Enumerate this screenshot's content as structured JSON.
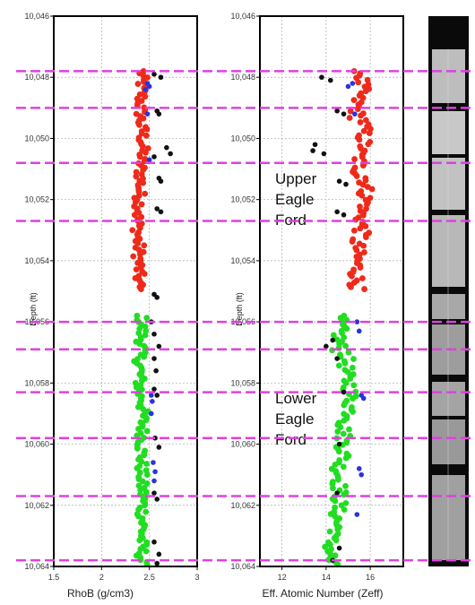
{
  "chart_data": [
    {
      "type": "scatter",
      "xlabel": "RhoB (g/cm3)",
      "ylabel": "Depth (ft)",
      "xlim": [
        1.5,
        3
      ],
      "ylim": [
        10064,
        10046
      ],
      "x_ticks": [
        "1.5",
        "2",
        "2.5",
        "3"
      ],
      "y_ticks": [
        "10,046",
        "10,048",
        "10,050",
        "10,052",
        "10,054",
        "10,056",
        "10,058",
        "10,060",
        "10,062",
        "10,064"
      ],
      "grid": true,
      "series": [
        {
          "color": "#ee2a1a",
          "ranges": [
            [
              10047.8,
              10048.7,
              2.42
            ],
            [
              10048.7,
              10049.7,
              2.41
            ],
            [
              10049.7,
              10050.6,
              2.43
            ],
            [
              10050.6,
              10051.6,
              2.41
            ],
            [
              10051.6,
              10052.5,
              2.4
            ],
            [
              10052.5,
              10053.5,
              2.38
            ],
            [
              10053.5,
              10055.0,
              2.39
            ]
          ]
        },
        {
          "color": "#22dd22",
          "ranges": [
            [
              10055.8,
              10057.0,
              2.42
            ],
            [
              10057.0,
              10058.5,
              2.4
            ],
            [
              10058.5,
              10060.0,
              2.43
            ],
            [
              10060.0,
              10061.5,
              2.42
            ],
            [
              10061.5,
              10063.0,
              2.43
            ],
            [
              10063.0,
              10064.0,
              2.42
            ]
          ]
        },
        {
          "color": "#111111",
          "points": [
            [
              2.55,
              10047.9
            ],
            [
              2.62,
              10048.0
            ],
            [
              2.58,
              10049.1
            ],
            [
              2.6,
              10049.2
            ],
            [
              2.68,
              10050.3
            ],
            [
              2.72,
              10050.5
            ],
            [
              2.55,
              10050.6
            ],
            [
              2.6,
              10051.3
            ],
            [
              2.62,
              10051.4
            ],
            [
              2.58,
              10052.3
            ],
            [
              2.62,
              10052.4
            ],
            [
              2.55,
              10055.1
            ],
            [
              2.58,
              10055.2
            ],
            [
              2.52,
              10056.0
            ],
            [
              2.55,
              10056.4
            ],
            [
              2.6,
              10056.8
            ],
            [
              2.55,
              10057.2
            ],
            [
              2.57,
              10057.6
            ],
            [
              2.55,
              10058.2
            ],
            [
              2.58,
              10058.4
            ],
            [
              2.56,
              10059.8
            ],
            [
              2.6,
              10060.1
            ],
            [
              2.55,
              10061.6
            ],
            [
              2.58,
              10061.8
            ],
            [
              2.55,
              10063.2
            ],
            [
              2.6,
              10063.6
            ],
            [
              2.58,
              10063.9
            ]
          ]
        },
        {
          "color": "#2a33dd",
          "points": [
            [
              2.48,
              10048.2
            ],
            [
              2.5,
              10048.3
            ],
            [
              2.46,
              10048.4
            ],
            [
              2.48,
              10049.2
            ],
            [
              2.5,
              10050.7
            ],
            [
              2.52,
              10058.4
            ],
            [
              2.53,
              10058.6
            ],
            [
              2.52,
              10059.0
            ],
            [
              2.54,
              10060.6
            ],
            [
              2.56,
              10060.9
            ],
            [
              2.55,
              10061.2
            ]
          ]
        }
      ]
    },
    {
      "type": "scatter",
      "xlabel": "Eff. Atomic Number (Zeff)",
      "ylabel": "Depth (ft)",
      "xlim": [
        11,
        17.5
      ],
      "ylim": [
        10064,
        10046
      ],
      "x_ticks": [
        "12",
        "14",
        "16"
      ],
      "y_ticks": [
        "10,046",
        "10,048",
        "10,050",
        "10,052",
        "10,054",
        "10,056",
        "10,058",
        "10,060",
        "10,062",
        "10,064"
      ],
      "grid": true,
      "series": [
        {
          "color": "#ee2a1a",
          "ranges": [
            [
              10047.8,
              10048.6,
              15.6
            ],
            [
              10048.6,
              10049.4,
              15.4
            ],
            [
              10049.4,
              10050.4,
              15.7
            ],
            [
              10050.4,
              10051.3,
              15.5
            ],
            [
              10051.3,
              10052.3,
              15.8
            ],
            [
              10052.3,
              10053.3,
              15.6
            ],
            [
              10053.3,
              10055.0,
              15.4
            ]
          ]
        },
        {
          "color": "#22dd22",
          "ranges": [
            [
              10055.8,
              10057.0,
              14.6
            ],
            [
              10057.0,
              10058.0,
              14.9
            ],
            [
              10058.0,
              10059.3,
              15.1
            ],
            [
              10059.3,
              10060.6,
              14.8
            ],
            [
              10060.6,
              10062.0,
              14.6
            ],
            [
              10062.0,
              10063.0,
              14.5
            ],
            [
              10063.0,
              10064.0,
              14.2
            ]
          ]
        },
        {
          "color": "#111111",
          "points": [
            [
              13.8,
              10048.0
            ],
            [
              14.2,
              10048.1
            ],
            [
              14.5,
              10049.1
            ],
            [
              14.8,
              10049.2
            ],
            [
              13.5,
              10050.2
            ],
            [
              13.4,
              10050.4
            ],
            [
              13.9,
              10050.5
            ],
            [
              14.6,
              10051.4
            ],
            [
              14.9,
              10051.5
            ],
            [
              14.5,
              10052.4
            ],
            [
              14.8,
              10052.5
            ],
            [
              14.3,
              10056.6
            ],
            [
              14.0,
              10056.8
            ],
            [
              14.5,
              10057.2
            ],
            [
              14.8,
              10058.3
            ],
            [
              14.6,
              10060.0
            ],
            [
              14.5,
              10061.6
            ],
            [
              14.6,
              10063.4
            ],
            [
              14.3,
              10063.8
            ]
          ]
        },
        {
          "color": "#2a33dd",
          "points": [
            [
              15.0,
              10048.3
            ],
            [
              15.2,
              10048.2
            ],
            [
              15.3,
              10049.2
            ],
            [
              15.4,
              10056.0
            ],
            [
              15.5,
              10056.3
            ],
            [
              15.6,
              10058.4
            ],
            [
              15.7,
              10058.5
            ],
            [
              15.5,
              10060.8
            ],
            [
              15.6,
              10061.0
            ],
            [
              15.4,
              10062.3
            ]
          ]
        }
      ]
    }
  ],
  "annotations": {
    "upper": [
      "Upper",
      "Eagle",
      "Ford"
    ],
    "lower": [
      "Lower",
      "Eagle",
      "Ford"
    ]
  },
  "boundary_depths": [
    10047.8,
    10049.0,
    10050.8,
    10052.7,
    10056.0,
    10056.9,
    10058.3,
    10059.8,
    10061.7,
    10063.8
  ],
  "colors": {
    "boundary_line": "#e040e0",
    "frame": "#000000",
    "grid": "#aaaaaa"
  }
}
